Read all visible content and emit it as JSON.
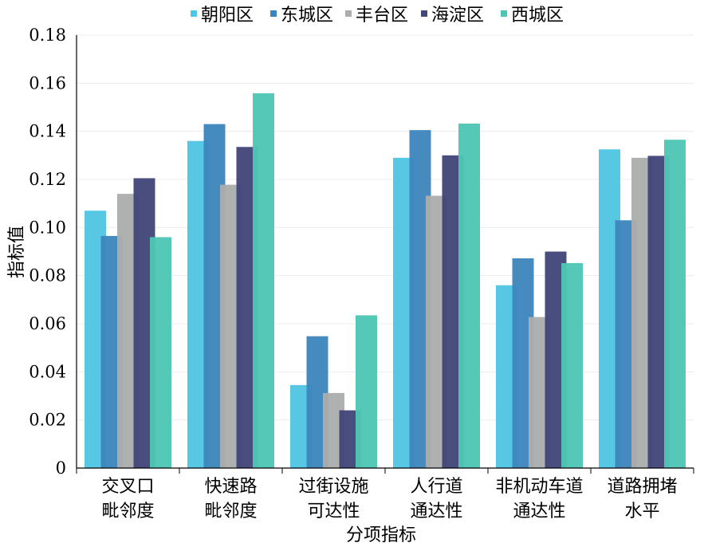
{
  "chart_data": {
    "type": "bar",
    "xlabel": "分项指标",
    "ylabel": "指标值",
    "ylim": [
      0,
      0.18
    ],
    "yticks": [
      "0",
      "0.02",
      "0.04",
      "0.06",
      "0.08",
      "0.10",
      "0.12",
      "0.14",
      "0.16",
      "0.18"
    ],
    "legend_position": "top",
    "grid": true,
    "categories": [
      [
        "交叉口",
        "毗邻度"
      ],
      [
        "快速路",
        "毗邻度"
      ],
      [
        "过街设施",
        "可达性"
      ],
      [
        "人行道",
        "通达性"
      ],
      [
        "非机动车道",
        "通达性"
      ],
      [
        "道路拥堵",
        "水平"
      ]
    ],
    "series": [
      {
        "name": "朝阳区",
        "color": "#4fc6e3",
        "values": [
          0.107,
          0.136,
          0.0345,
          0.129,
          0.076,
          0.1325
        ]
      },
      {
        "name": "东城区",
        "color": "#3d86bd",
        "values": [
          0.0965,
          0.143,
          0.0548,
          0.1405,
          0.0872,
          0.103
        ]
      },
      {
        "name": "丰台区",
        "color": "#acadad",
        "values": [
          0.114,
          0.1178,
          0.0312,
          0.1132,
          0.0628,
          0.129
        ]
      },
      {
        "name": "海淀区",
        "color": "#43477a",
        "values": [
          0.1205,
          0.1335,
          0.024,
          0.13,
          0.09,
          0.1298
        ]
      },
      {
        "name": "西城区",
        "color": "#4ec6b4",
        "values": [
          0.096,
          0.1558,
          0.0635,
          0.1432,
          0.0852,
          0.1365
        ]
      }
    ]
  }
}
